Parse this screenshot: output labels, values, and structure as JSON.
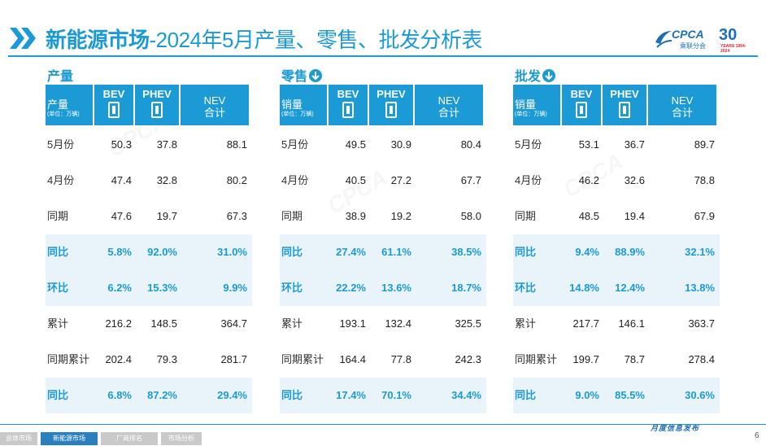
{
  "header": {
    "title_bold": "新能源市场",
    "title_rest": "-2024年5月产量、零售、批发分析表",
    "logo_text": "CPCA",
    "logo_sub": "乘联分会",
    "anniversary": "30",
    "anniversary_sub": "YEARS 1994-2024"
  },
  "colors": {
    "accent": "#1b9ad6",
    "highlight_row": "#e8f4fa"
  },
  "columns": {
    "bev": "BEV",
    "phev": "PHEV",
    "nev_line1": "NEV",
    "nev_line2": "合计",
    "unit": "(单位：万辆)"
  },
  "sections": [
    {
      "title": "产量",
      "corner_label": "产量",
      "rows": [
        {
          "label": "5月份",
          "bev": "50.3",
          "phev": "37.8",
          "nev": "88.1",
          "hl": false
        },
        {
          "label": "4月份",
          "bev": "47.4",
          "phev": "32.8",
          "nev": "80.2",
          "hl": false
        },
        {
          "label": "同期",
          "bev": "47.6",
          "phev": "19.7",
          "nev": "67.3",
          "hl": false
        },
        {
          "label": "同比",
          "bev": "5.8%",
          "phev": "92.0%",
          "nev": "31.0%",
          "hl": true
        },
        {
          "label": "环比",
          "bev": "6.2%",
          "phev": "15.3%",
          "nev": "9.9%",
          "hl": true
        },
        {
          "label": "累计",
          "bev": "216.2",
          "phev": "148.5",
          "nev": "364.7",
          "hl": false
        },
        {
          "label": "同期累计",
          "bev": "202.4",
          "phev": "79.3",
          "nev": "281.7",
          "hl": false
        },
        {
          "label": "同比",
          "bev": "6.8%",
          "phev": "87.2%",
          "nev": "29.4%",
          "hl": true
        }
      ]
    },
    {
      "title": "零售",
      "corner_label": "销量",
      "rows": [
        {
          "label": "5月份",
          "bev": "49.5",
          "phev": "30.9",
          "nev": "80.4",
          "hl": false
        },
        {
          "label": "4月份",
          "bev": "40.5",
          "phev": "27.2",
          "nev": "67.7",
          "hl": false
        },
        {
          "label": "同期",
          "bev": "38.9",
          "phev": "19.2",
          "nev": "58.0",
          "hl": false
        },
        {
          "label": "同比",
          "bev": "27.4%",
          "phev": "61.1%",
          "nev": "38.5%",
          "hl": true
        },
        {
          "label": "环比",
          "bev": "22.2%",
          "phev": "13.6%",
          "nev": "18.7%",
          "hl": true
        },
        {
          "label": "累计",
          "bev": "193.1",
          "phev": "132.4",
          "nev": "325.5",
          "hl": false
        },
        {
          "label": "同期累计",
          "bev": "164.4",
          "phev": "77.8",
          "nev": "242.3",
          "hl": false
        },
        {
          "label": "同比",
          "bev": "17.4%",
          "phev": "70.1%",
          "nev": "34.4%",
          "hl": true
        }
      ]
    },
    {
      "title": "批发",
      "corner_label": "销量",
      "rows": [
        {
          "label": "5月份",
          "bev": "53.1",
          "phev": "36.7",
          "nev": "89.7",
          "hl": false
        },
        {
          "label": "4月份",
          "bev": "46.2",
          "phev": "32.6",
          "nev": "78.8",
          "hl": false
        },
        {
          "label": "同期",
          "bev": "48.5",
          "phev": "19.4",
          "nev": "67.9",
          "hl": false
        },
        {
          "label": "同比",
          "bev": "9.4%",
          "phev": "88.9%",
          "nev": "32.1%",
          "hl": true
        },
        {
          "label": "环比",
          "bev": "14.8%",
          "phev": "12.4%",
          "nev": "13.8%",
          "hl": true
        },
        {
          "label": "累计",
          "bev": "217.7",
          "phev": "146.1",
          "nev": "363.7",
          "hl": false
        },
        {
          "label": "同期累计",
          "bev": "199.7",
          "phev": "78.7",
          "nev": "278.4",
          "hl": false
        },
        {
          "label": "同比",
          "bev": "9.0%",
          "phev": "85.5%",
          "nev": "30.6%",
          "hl": true
        }
      ]
    }
  ],
  "footer": {
    "tabs": [
      {
        "label": "总体市场",
        "active": false
      },
      {
        "label": "新能源市场",
        "active": true
      },
      {
        "label": "厂商排名",
        "active": false
      },
      {
        "label": "市场分析",
        "active": false
      }
    ],
    "monthly": "月度信息发布",
    "page": "6"
  }
}
